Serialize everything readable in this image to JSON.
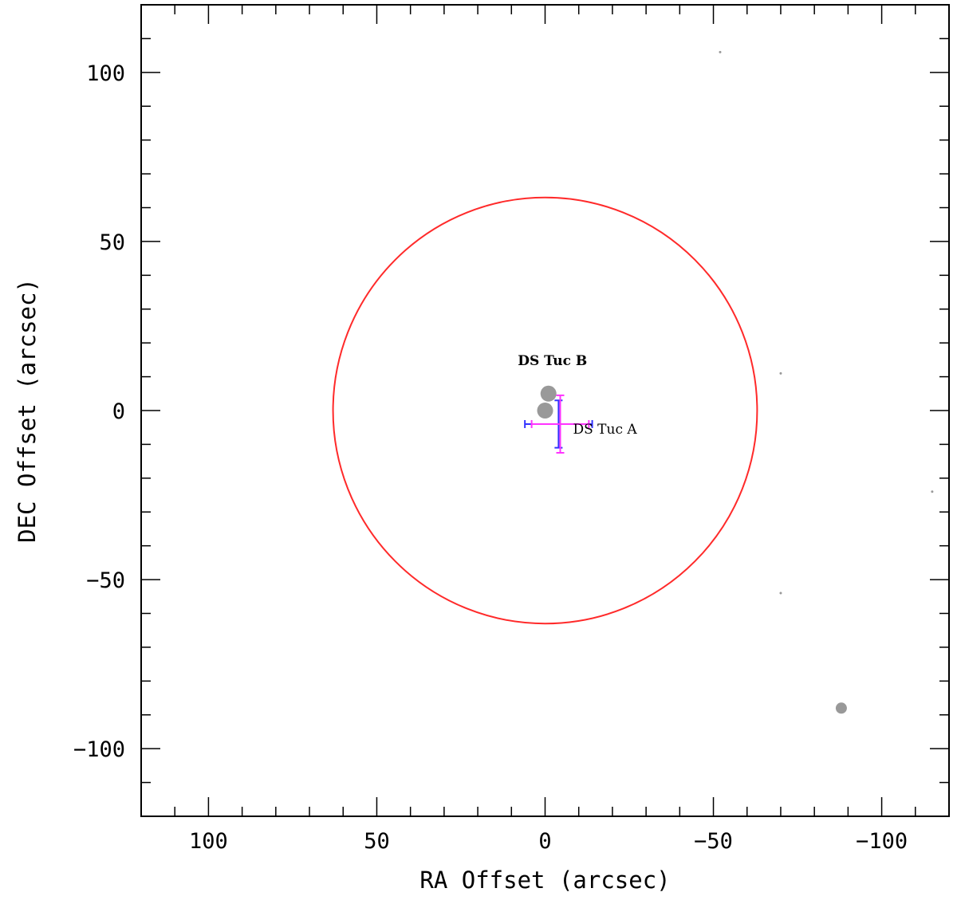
{
  "chart_data": {
    "type": "scatter",
    "xlabel": "RA Offset (arcsec)",
    "ylabel": "DEC Offset (arcsec)",
    "xlim": [
      120,
      -120
    ],
    "ylim": [
      -120,
      120
    ],
    "x_axis_reversed": true,
    "x_major_ticks": [
      100,
      50,
      0,
      -50,
      -100
    ],
    "x_major_tick_labels": [
      "100",
      "50",
      "0",
      "−50",
      "−100"
    ],
    "y_major_ticks": [
      100,
      50,
      0,
      -50,
      -100
    ],
    "y_major_tick_labels": [
      "100",
      "50",
      "0",
      "−50",
      "−100"
    ],
    "grid": false,
    "circle": {
      "center": [
        0,
        0
      ],
      "radius": 63,
      "color": "#ff2a2a"
    },
    "stars": [
      {
        "label": "DS Tuc B",
        "x": -1,
        "y": 5,
        "size": "large",
        "color": "#999999"
      },
      {
        "label": "DS Tuc A",
        "x": 0,
        "y": 0,
        "size": "large",
        "color": "#999999"
      },
      {
        "label": "",
        "x": -88,
        "y": -88,
        "size": "medium",
        "color": "#999999"
      },
      {
        "label": "",
        "x": -52,
        "y": 106,
        "size": "tiny",
        "color": "#999999"
      },
      {
        "label": "",
        "x": -70,
        "y": 11,
        "size": "tiny",
        "color": "#999999"
      },
      {
        "label": "",
        "x": -70,
        "y": -54,
        "size": "tiny",
        "color": "#999999"
      },
      {
        "label": "",
        "x": -115,
        "y": -24,
        "size": "tiny",
        "color": "#999999"
      }
    ],
    "error_crosses": [
      {
        "x": -4,
        "y": -4,
        "x_err": 10,
        "y_err": 7,
        "color": "#3333ff"
      },
      {
        "x": -4.5,
        "y": -4,
        "x_err": 8.5,
        "y_err": 8.5,
        "color": "#ff33ff"
      }
    ]
  }
}
